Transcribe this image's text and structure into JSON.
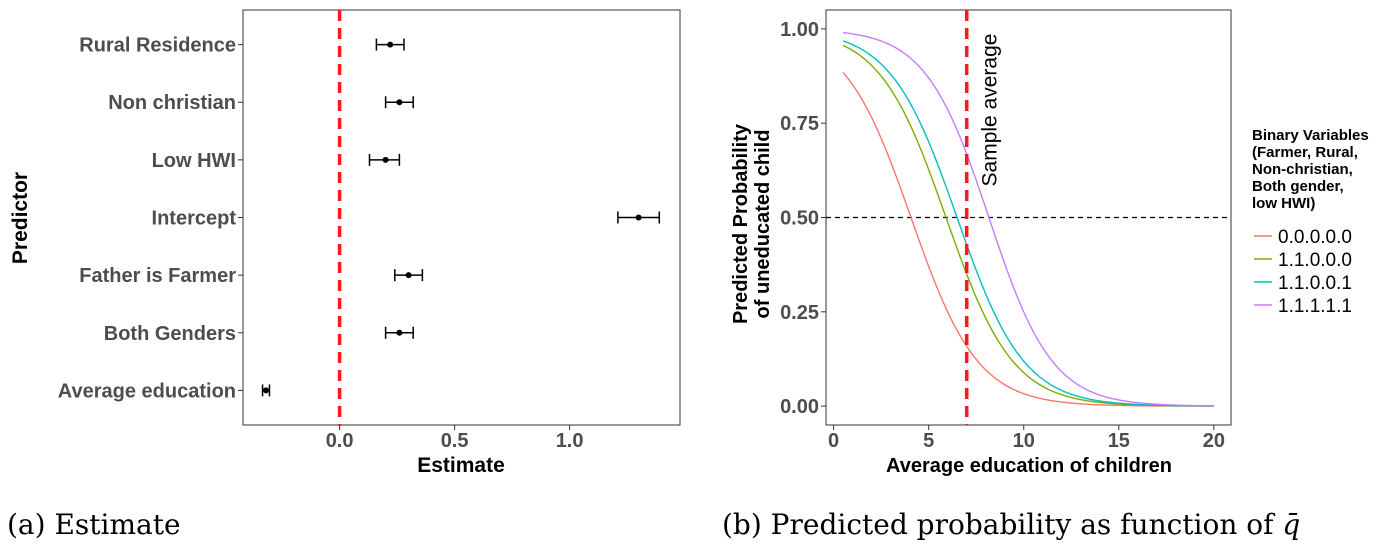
{
  "chart_data": [
    {
      "type": "errorbar",
      "caption": "(a) Estimate",
      "xlabel": "Estimate",
      "ylabel": "Predictor",
      "xlim": [
        -0.42,
        1.48
      ],
      "xticks": [
        0.0,
        0.5,
        1.0
      ],
      "xtick_labels": [
        "0.0",
        "0.5",
        "1.0"
      ],
      "reference_line": {
        "x": 0,
        "color": "#ff1a1a",
        "style": "dashed"
      },
      "predictors": [
        {
          "label": "Rural Residence",
          "estimate": 0.22,
          "low": 0.16,
          "high": 0.28
        },
        {
          "label": "Non christian",
          "estimate": 0.26,
          "low": 0.2,
          "high": 0.32
        },
        {
          "label": "Low HWI",
          "estimate": 0.2,
          "low": 0.13,
          "high": 0.26
        },
        {
          "label": "Intercept",
          "estimate": 1.3,
          "low": 1.21,
          "high": 1.39
        },
        {
          "label": "Father is Farmer",
          "estimate": 0.3,
          "low": 0.24,
          "high": 0.36
        },
        {
          "label": "Both Genders",
          "estimate": 0.26,
          "low": 0.2,
          "high": 0.32
        },
        {
          "label": "Average education",
          "estimate": -0.32,
          "low": -0.335,
          "high": -0.305
        }
      ]
    },
    {
      "type": "line",
      "caption_prefix": "(b) Predicted probability as function of ",
      "caption_symbol": "q̄",
      "xlabel": "Average education of children",
      "ylabel_line1": "Predicted Probability",
      "ylabel_line2": "of uneducated child",
      "xlim": [
        -0.4,
        20.9
      ],
      "ylim": [
        -0.05,
        1.05
      ],
      "xticks": [
        0,
        5,
        10,
        15,
        20
      ],
      "xtick_labels": [
        "0",
        "5",
        "10",
        "15",
        "20"
      ],
      "yticks": [
        0.0,
        0.25,
        0.5,
        0.75,
        1.0
      ],
      "ytick_labels": [
        "0.00",
        "0.25",
        "0.50",
        "0.75",
        "1.00"
      ],
      "x_range": [
        0.5,
        20
      ],
      "vline": {
        "x": 7,
        "label": "Sample average",
        "color": "#ff1a1a"
      },
      "hline": {
        "y": 0.5
      },
      "legend_title_lines": [
        "Binary Variables",
        "(Farmer, Rural,",
        "Non-christian,",
        "Both gender,",
        "low HWI)"
      ],
      "series": [
        {
          "name": "0.0.0.0.0",
          "color": "#F8766D",
          "intercept": 2.32,
          "slope": -0.57
        },
        {
          "name": "1.1.0.0.0",
          "color": "#7CAE00",
          "intercept": 3.37,
          "slope": -0.57
        },
        {
          "name": "1.1.0.0.1",
          "color": "#00BFC4",
          "intercept": 3.7,
          "slope": -0.57
        },
        {
          "name": "1.1.1.1.1",
          "color": "#C77CFF",
          "intercept": 4.9,
          "slope": -0.6
        }
      ]
    }
  ]
}
